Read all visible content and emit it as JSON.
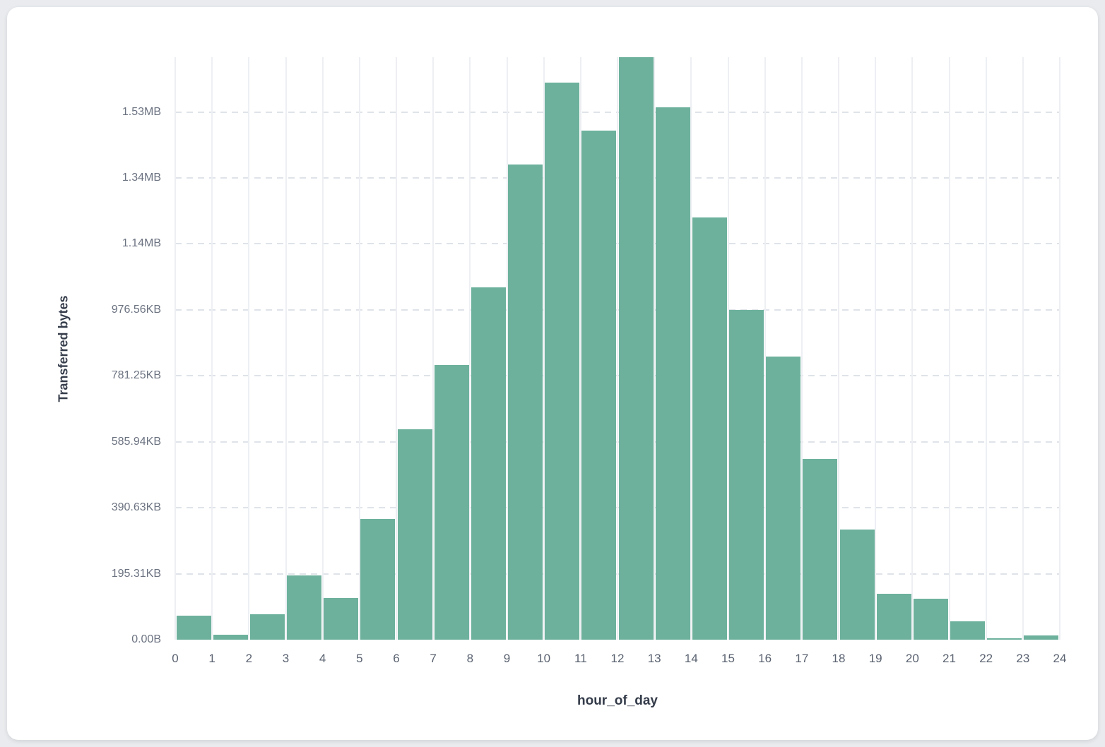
{
  "page": {
    "background_color": "#e9ebee",
    "card_background_color": "#ffffff"
  },
  "chart_data": {
    "type": "bar",
    "title": "",
    "xlabel": "hour_of_day",
    "ylabel": "Transferred bytes",
    "categories": [
      0,
      1,
      2,
      3,
      4,
      5,
      6,
      7,
      8,
      9,
      10,
      11,
      12,
      13,
      14,
      15,
      16,
      17,
      18,
      19,
      20,
      21,
      22,
      23
    ],
    "values_bytes": [
      72000,
      14000,
      78000,
      194000,
      127000,
      367000,
      638000,
      833000,
      1068000,
      1441000,
      1690000,
      1543000,
      1766000,
      1613000,
      1280000,
      999000,
      858000,
      547000,
      335000,
      140000,
      125000,
      56000,
      4000,
      12000
    ],
    "x_ticks": [
      "0",
      "1",
      "2",
      "3",
      "4",
      "5",
      "6",
      "7",
      "8",
      "9",
      "10",
      "11",
      "12",
      "13",
      "14",
      "15",
      "16",
      "17",
      "18",
      "19",
      "20",
      "21",
      "22",
      "23",
      "24"
    ],
    "y_ticks": [
      {
        "label": "0.00B",
        "bytes": 0
      },
      {
        "label": "195.31KB",
        "bytes": 200000
      },
      {
        "label": "390.63KB",
        "bytes": 400000
      },
      {
        "label": "585.94KB",
        "bytes": 600000
      },
      {
        "label": "781.25KB",
        "bytes": 800000
      },
      {
        "label": "976.56KB",
        "bytes": 1000000
      },
      {
        "label": "1.14MB",
        "bytes": 1200000
      },
      {
        "label": "1.34MB",
        "bytes": 1400000
      },
      {
        "label": "1.53MB",
        "bytes": 1600000
      }
    ],
    "xlim": [
      0,
      24
    ],
    "ylim": [
      0,
      1766000
    ],
    "grid": "on",
    "legend": "none",
    "bar_color": "#6db19c",
    "v_gridline_color": "#edeff3",
    "h_gridline_color": "#dfe3e9",
    "y_tick_color": "#6b7280",
    "x_tick_color": "#5a6270",
    "axis_title_color": "#353c4a"
  }
}
